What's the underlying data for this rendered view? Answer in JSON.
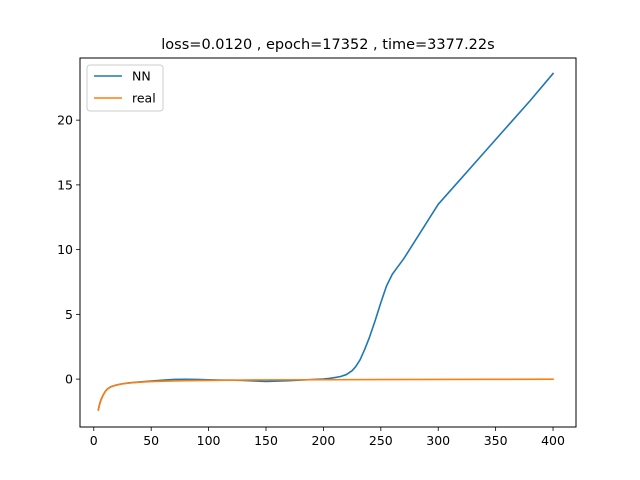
{
  "chart_data": {
    "type": "line",
    "title": "loss=0.0120 , epoch=17352 , time=3377.22s",
    "xlabel": "",
    "ylabel": "",
    "xlim": [
      -12,
      420
    ],
    "ylim": [
      -3.7,
      24.8
    ],
    "xticks": [
      0,
      50,
      100,
      150,
      200,
      250,
      300,
      350,
      400
    ],
    "yticks": [
      0,
      5,
      10,
      15,
      20
    ],
    "grid": false,
    "legend": "upper left",
    "series": [
      {
        "name": "NN",
        "color": "#1f77b4",
        "x": [
          4,
          5,
          6,
          8,
          10,
          12,
          15,
          20,
          25,
          30,
          40,
          50,
          60,
          70,
          80,
          90,
          100,
          110,
          120,
          130,
          140,
          150,
          160,
          170,
          180,
          190,
          200,
          205,
          210,
          215,
          220,
          225,
          228,
          232,
          236,
          240,
          245,
          250,
          255,
          260,
          265,
          270,
          280,
          290,
          300,
          320,
          340,
          360,
          380,
          400
        ],
        "y": [
          -2.35,
          -1.95,
          -1.65,
          -1.25,
          -0.95,
          -0.75,
          -0.58,
          -0.45,
          -0.36,
          -0.3,
          -0.22,
          -0.15,
          -0.08,
          -0.03,
          -0.02,
          -0.03,
          -0.05,
          -0.07,
          -0.08,
          -0.1,
          -0.14,
          -0.18,
          -0.15,
          -0.12,
          -0.08,
          -0.04,
          0.0,
          0.05,
          0.12,
          0.2,
          0.35,
          0.65,
          0.95,
          1.5,
          2.3,
          3.2,
          4.5,
          5.9,
          7.2,
          8.1,
          8.7,
          9.3,
          10.7,
          12.1,
          13.5,
          15.5,
          17.5,
          19.5,
          21.5,
          23.6
        ]
      },
      {
        "name": "real",
        "color": "#ff7f0e",
        "x": [
          4,
          5,
          6,
          8,
          10,
          12,
          15,
          20,
          25,
          30,
          40,
          50,
          60,
          70,
          80,
          100,
          120,
          150,
          200,
          250,
          300,
          350,
          400
        ],
        "y": [
          -2.4,
          -2.0,
          -1.7,
          -1.28,
          -0.97,
          -0.77,
          -0.6,
          -0.45,
          -0.37,
          -0.31,
          -0.24,
          -0.19,
          -0.16,
          -0.14,
          -0.12,
          -0.1,
          -0.08,
          -0.06,
          -0.05,
          -0.04,
          -0.03,
          -0.02,
          -0.01
        ]
      }
    ]
  }
}
